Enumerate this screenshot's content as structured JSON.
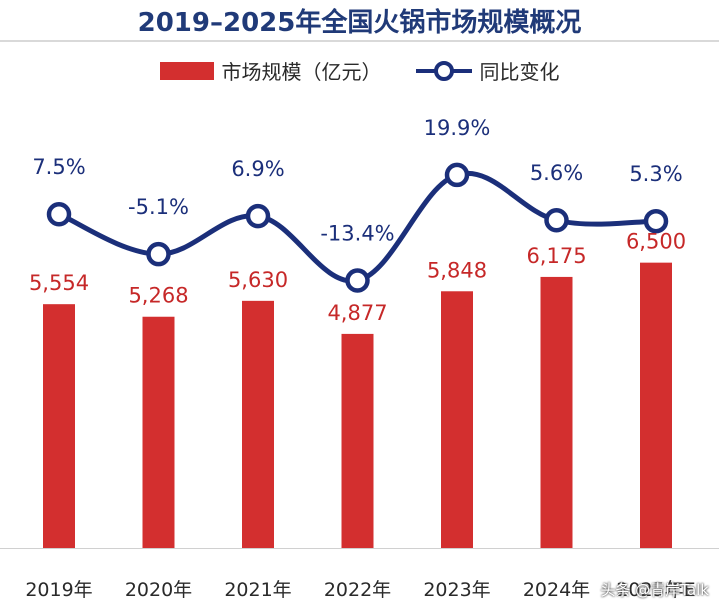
{
  "title": "2019–2025年全国火锅市场规模概况",
  "legend": {
    "bar_label": "市场规模（亿元）",
    "line_label": "同比变化"
  },
  "watermark": "头条 @青岸Talk",
  "colors": {
    "bar": "#d32f2f",
    "line": "#1b2f7a",
    "bar_label": "#c62828",
    "line_label": "#1b2f7a",
    "title": "#203a78"
  },
  "chart_data": {
    "type": "bar",
    "categories": [
      "2019年",
      "2020年",
      "2021年",
      "2022年",
      "2023年",
      "2024年",
      "2025年E"
    ],
    "series": [
      {
        "name": "市场规模（亿元）",
        "type": "bar",
        "values": [
          5554,
          5268,
          5630,
          4877,
          5848,
          6175,
          6500
        ],
        "labels": [
          "5,554",
          "5,268",
          "5,630",
          "4,877",
          "5,848",
          "6,175",
          "6,500"
        ]
      },
      {
        "name": "同比变化",
        "type": "line",
        "values": [
          7.5,
          -5.1,
          6.9,
          -13.4,
          19.9,
          5.6,
          5.3
        ],
        "labels": [
          "7.5%",
          "-5.1%",
          "6.9%",
          "-13.4%",
          "19.9%",
          "5.6%",
          "5.3%"
        ]
      }
    ],
    "grid": false,
    "legend_position": "top-center"
  }
}
